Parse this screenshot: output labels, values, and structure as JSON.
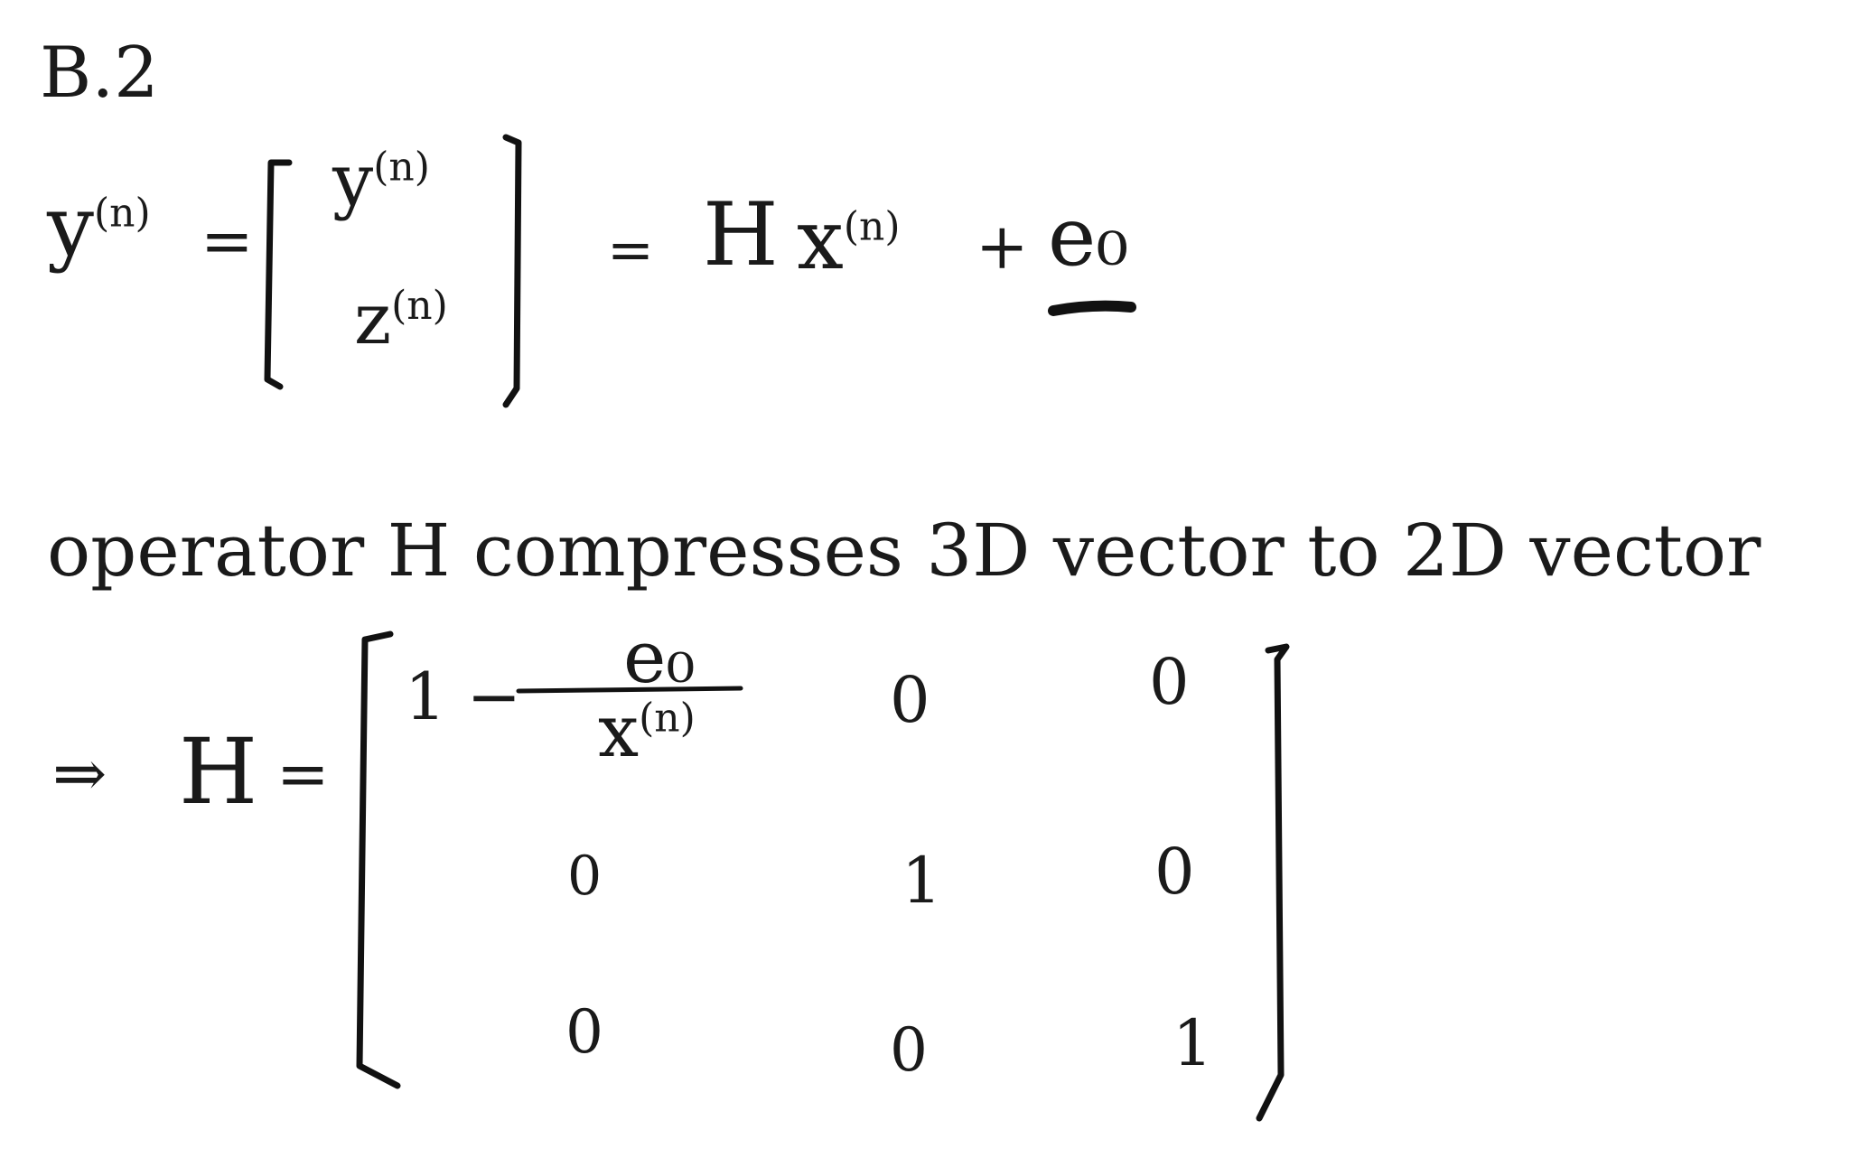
{
  "heading": "B.2",
  "equation1": {
    "lhs": "y",
    "lhs_sup": "(n)",
    "equals": "=",
    "vec_top": "y",
    "vec_top_sup": "(n)",
    "vec_bottom": "z",
    "vec_bottom_sup": "(n)",
    "equals2": "=",
    "rhs_H": "H",
    "rhs_x": "x",
    "rhs_x_sup": "(n)",
    "plus": "+",
    "noise": "e₀"
  },
  "description": "operator H compresses 3D vector to 2D vector",
  "equation2": {
    "implies": "⇒",
    "H": "H",
    "equals": "=",
    "matrix": {
      "r1c1_prefix": "1 −",
      "r1c1_num": "e₀",
      "r1c1_den": "x",
      "r1c1_den_sup": "(n)",
      "r1c2": "0",
      "r1c3": "0",
      "r2c1": "0",
      "r2c2": "1",
      "r2c3": "0",
      "r3c1": "0",
      "r3c2": "0",
      "r3c3": "1"
    }
  }
}
